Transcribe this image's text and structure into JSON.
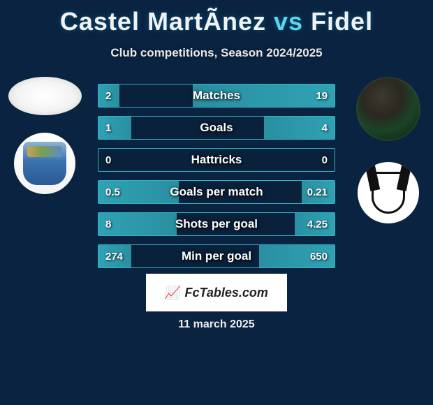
{
  "header": {
    "player1": "Castel MartÃnez",
    "vs": "vs",
    "player2": "Fidel",
    "subtitle": "Club competitions, Season 2024/2025"
  },
  "colors": {
    "background": "#0a2340",
    "accent": "#5bd6e8",
    "bar_border": "#2fb3c5",
    "bar_fill": "#2a8fa0",
    "text": "#ffffff"
  },
  "stats": [
    {
      "label": "Matches",
      "left_val": "2",
      "right_val": "19",
      "left_pct": 9,
      "right_pct": 60
    },
    {
      "label": "Goals",
      "left_val": "1",
      "right_val": "4",
      "left_pct": 14,
      "right_pct": 30
    },
    {
      "label": "Hattricks",
      "left_val": "0",
      "right_val": "0",
      "left_pct": 0,
      "right_pct": 0
    },
    {
      "label": "Goals per match",
      "left_val": "0.5",
      "right_val": "0.21",
      "left_pct": 34,
      "right_pct": 14
    },
    {
      "label": "Shots per goal",
      "left_val": "8",
      "right_val": "4.25",
      "left_pct": 33,
      "right_pct": 17
    },
    {
      "label": "Min per goal",
      "left_val": "274",
      "right_val": "650",
      "left_pct": 14,
      "right_pct": 32
    }
  ],
  "watermark": "FcTables.com",
  "date": "11 march 2025",
  "clubs": {
    "left": "Málaga CF",
    "right": "Albacete"
  }
}
